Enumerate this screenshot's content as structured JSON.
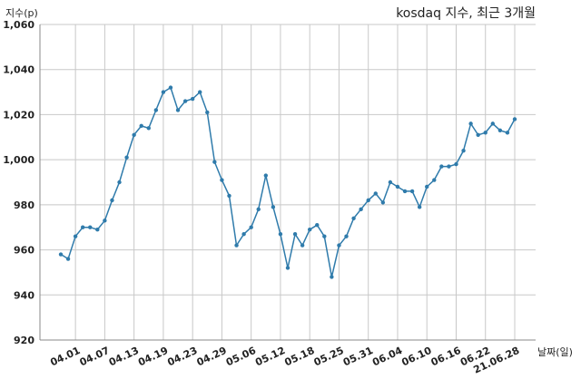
{
  "chart_data": {
    "type": "line",
    "title": "kosdaq 지수, 최근 3개월",
    "xlabel": "날짜(일)",
    "ylabel": "지수(p)",
    "ylim": [
      920,
      1060
    ],
    "yticks": [
      920,
      940,
      960,
      980,
      1000,
      1020,
      1040,
      1060
    ],
    "ytick_labels": [
      "920",
      "940",
      "960",
      "980",
      "1,000",
      "1,020",
      "1,040",
      "1,060"
    ],
    "xtick_labels": [
      "04.01",
      "04.07",
      "04.13",
      "04.19",
      "04.23",
      "04.29",
      "05.06",
      "05.12",
      "05.18",
      "05.25",
      "05.31",
      "06.04",
      "06.10",
      "06.16",
      "06.22",
      "21.06.28"
    ],
    "xtick_index": [
      2,
      6,
      10,
      14,
      18,
      22,
      26,
      30,
      34,
      38,
      42,
      46,
      50,
      54,
      58,
      62
    ],
    "grid": true,
    "color": "#2f7bab",
    "series": [
      {
        "values": [
          958,
          956,
          966,
          970,
          970,
          969,
          973,
          982,
          990,
          1001,
          1011,
          1015,
          1014,
          1022,
          1030,
          1032,
          1022,
          1026,
          1027,
          1030,
          1021,
          999,
          991,
          984,
          962,
          967,
          970,
          978,
          993,
          979,
          967,
          952,
          967,
          962,
          969,
          971,
          966,
          948,
          962,
          966,
          974,
          978,
          982,
          985,
          981,
          990,
          988,
          986,
          986,
          979,
          988,
          991,
          997,
          997,
          998,
          1004,
          1016,
          1011,
          1012,
          1016,
          1013,
          1012,
          1018
        ]
      }
    ]
  }
}
